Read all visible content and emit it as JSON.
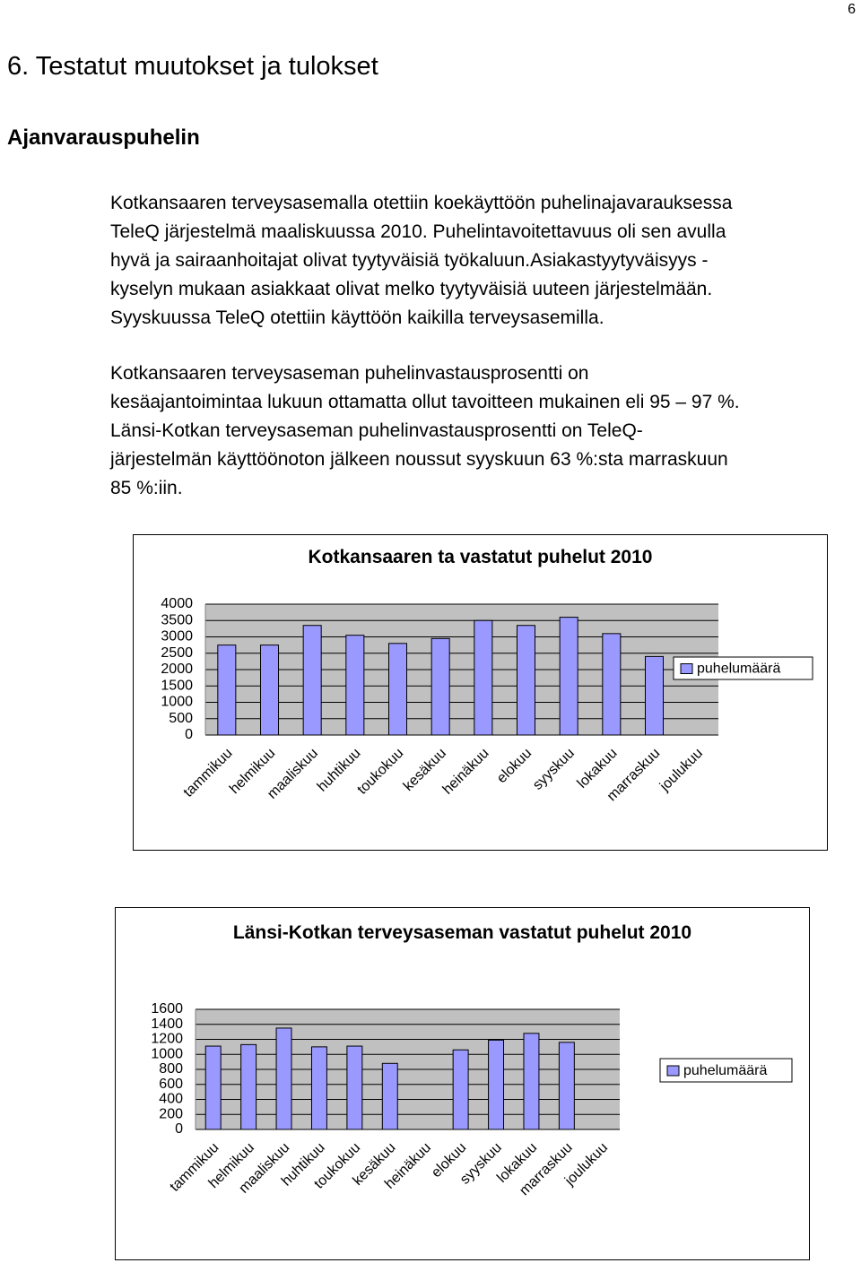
{
  "page_number": "6",
  "heading": "6. Testatut muutokset ja tulokset",
  "subheading": "Ajanvarauspuhelin",
  "paragraphs": [
    [
      "Kotkansaaren terveysasemalla otettiin koekäyttöön puhelinajavarauksessa",
      "TeleQ järjestelmä maaliskuussa 2010. Puhelintavoitettavuus oli sen avulla",
      "hyvä ja sairaanhoitajat olivat tyytyväisiä työkaluun.Asiakastyytyväisyys -",
      "kyselyn mukaan asiakkaat olivat melko tyytyväisiä uuteen järjestelmään.",
      "Syyskuussa TeleQ otettiin käyttöön kaikilla terveysasemilla."
    ],
    [
      "Kotkansaaren terveysaseman puhelinvastausprosentti on",
      "kesäajantoimintaa lukuun ottamatta ollut tavoitteen mukainen eli 95 – 97 %.",
      "Länsi-Kotkan terveysaseman puhelinvastausprosentti on TeleQ-",
      "järjestelmän käyttöönoton jälkeen noussut syyskuun 63 %:sta marraskuun",
      "85 %:iin."
    ]
  ],
  "chart_data": [
    {
      "type": "bar",
      "title": "Kotkansaaren ta vastatut puhelut 2010",
      "categories": [
        "tammikuu",
        "helmikuu",
        "maaliskuu",
        "huhtikuu",
        "toukokuu",
        "kesäkuu",
        "heinäkuu",
        "elokuu",
        "syyskuu",
        "lokakuu",
        "marraskuu",
        "joulukuu"
      ],
      "series": [
        {
          "name": "puhelumäärä",
          "color": "#9999ff",
          "values": [
            2750,
            2750,
            3350,
            3050,
            2800,
            2950,
            3500,
            3350,
            3600,
            3100,
            2400,
            null
          ]
        }
      ],
      "ylim": [
        0,
        4000
      ],
      "yticks": [
        0,
        500,
        1000,
        1500,
        2000,
        2500,
        3000,
        3500,
        4000
      ],
      "grid": true,
      "legend": "right"
    },
    {
      "type": "bar",
      "title": "Länsi-Kotkan terveysaseman vastatut puhelut 2010",
      "categories": [
        "tammikuu",
        "helmikuu",
        "maaliskuu",
        "huhtikuu",
        "toukokuu",
        "kesäkuu",
        "heinäkuu",
        "elokuu",
        "syyskuu",
        "lokakuu",
        "marraskuu",
        "joulukuu"
      ],
      "series": [
        {
          "name": "puhelumäärä",
          "color": "#9999ff",
          "values": [
            1110,
            1130,
            1350,
            1100,
            1110,
            880,
            null,
            1060,
            1190,
            1280,
            1160,
            null
          ]
        }
      ],
      "ylim": [
        0,
        1600
      ],
      "yticks": [
        0,
        200,
        400,
        600,
        800,
        1000,
        1200,
        1400,
        1600
      ],
      "grid": true,
      "legend": "right"
    }
  ]
}
